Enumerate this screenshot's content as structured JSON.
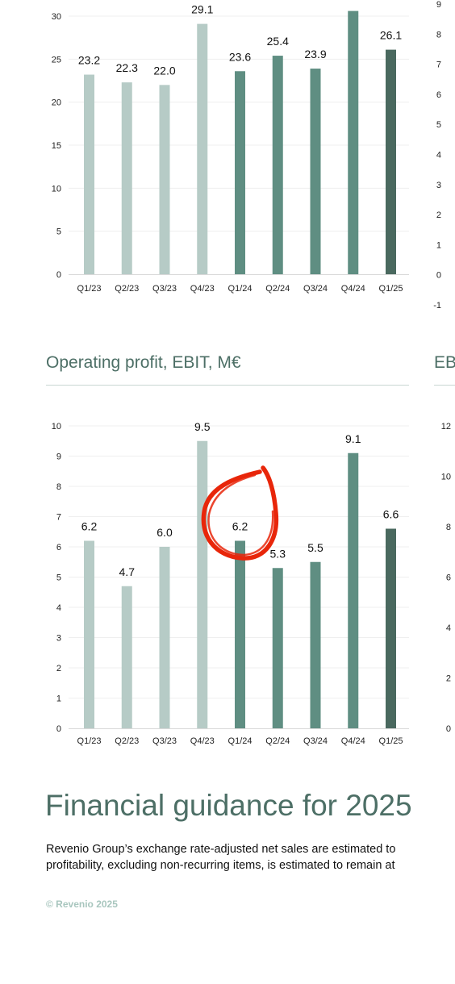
{
  "colors": {
    "light": "#b6cbc6",
    "mid": "#5f8e82",
    "dark": "#4a695f",
    "accent": "#4d6f66",
    "annotation": "#e8260a"
  },
  "chart_data": [
    {
      "type": "bar",
      "categories": [
        "Q1/23",
        "Q2/23",
        "Q3/23",
        "Q4/23",
        "Q1/24",
        "Q2/24",
        "Q3/24",
        "Q4/24",
        "Q1/25"
      ],
      "values": [
        23.2,
        22.3,
        22.0,
        29.1,
        23.6,
        25.4,
        23.9,
        30.6,
        26.1
      ],
      "data_labels": [
        "23.2",
        "22.3",
        "22.0",
        "29.1",
        "23.6",
        "25.4",
        "23.9",
        "",
        "26.1"
      ],
      "shade": [
        "light",
        "light",
        "light",
        "light",
        "mid",
        "mid",
        "mid",
        "mid",
        "dark"
      ],
      "y_ticks": [
        "0",
        "5",
        "10",
        "15",
        "20",
        "25",
        "30"
      ],
      "ylim": [
        0,
        30
      ]
    },
    {
      "type": "bar",
      "title": "Operating profit, EBIT, M€",
      "categories": [
        "Q1/23",
        "Q2/23",
        "Q3/23",
        "Q4/23",
        "Q1/24",
        "Q2/24",
        "Q3/24",
        "Q4/24",
        "Q1/25"
      ],
      "values": [
        6.2,
        4.7,
        6.0,
        9.5,
        6.2,
        5.3,
        5.5,
        9.1,
        6.6
      ],
      "data_labels": [
        "6.2",
        "4.7",
        "6.0",
        "9.5",
        "6.2",
        "5.3",
        "5.5",
        "9.1",
        "6.6"
      ],
      "shade": [
        "light",
        "light",
        "light",
        "light",
        "mid",
        "mid",
        "mid",
        "mid",
        "dark"
      ],
      "y_ticks": [
        "0",
        "1",
        "2",
        "3",
        "4",
        "5",
        "6",
        "7",
        "8",
        "9",
        "10"
      ],
      "ylim": [
        0,
        10
      ]
    }
  ],
  "partial_axes": {
    "top_right_ticks": [
      "9",
      "8",
      "7",
      "6",
      "5",
      "4",
      "3",
      "2",
      "1",
      "0",
      "-1"
    ],
    "bottom_right_ticks": [
      "12",
      "10",
      "8",
      "6",
      "4",
      "2",
      "0"
    ],
    "bottom_right_title": "EB"
  },
  "guidance": {
    "heading": "Financial guidance for 2025",
    "line1": "Revenio Group’s exchange rate-adjusted net sales are estimated to",
    "line2": "profitability, excluding non-recurring items, is estimated to remain at"
  },
  "footer": "© Revenio 2025"
}
